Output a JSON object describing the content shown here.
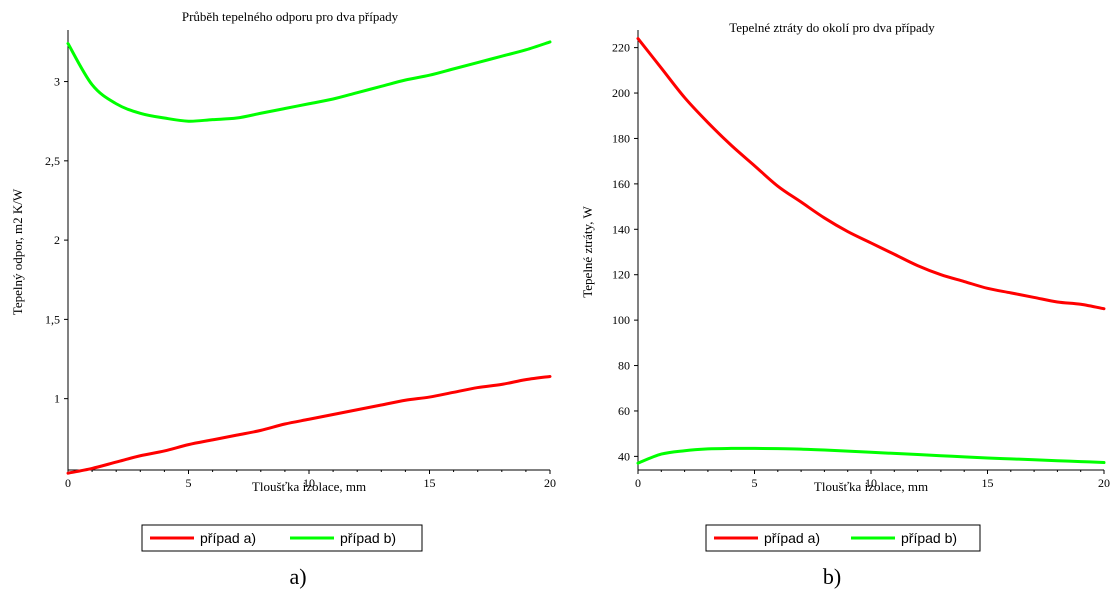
{
  "chart_data": [
    {
      "type": "line",
      "title": "Průběh tepelného odporu pro dva případy",
      "xlabel": "Tloušťka izolace, mm",
      "ylabel": "Tepelný odpor, m2 K/W",
      "xlim": [
        0,
        20
      ],
      "ylim": [
        0.55,
        3.3
      ],
      "x_ticks": [
        0,
        5,
        10,
        15,
        20
      ],
      "x_tick_labels": [
        "0",
        "5",
        "10",
        "15",
        "20"
      ],
      "y_ticks": [
        1,
        1.5,
        2,
        2.5,
        3
      ],
      "y_tick_labels": [
        "1",
        "1,5",
        "2",
        "2,5",
        "3"
      ],
      "grid": false,
      "legend_position": "bottom",
      "caption": "a)",
      "x": [
        0,
        1,
        2,
        3,
        4,
        5,
        6,
        7,
        8,
        9,
        10,
        11,
        12,
        13,
        14,
        15,
        16,
        17,
        18,
        19,
        20
      ],
      "series": [
        {
          "name": "případ a)",
          "color": "#ff0000",
          "values": [
            0.53,
            0.56,
            0.6,
            0.64,
            0.67,
            0.71,
            0.74,
            0.77,
            0.8,
            0.84,
            0.87,
            0.9,
            0.93,
            0.96,
            0.99,
            1.01,
            1.04,
            1.07,
            1.09,
            1.12,
            1.14
          ]
        },
        {
          "name": "případ b)",
          "color": "#00ff00",
          "values": [
            3.24,
            2.98,
            2.86,
            2.8,
            2.77,
            2.75,
            2.76,
            2.77,
            2.8,
            2.83,
            2.86,
            2.89,
            2.93,
            2.97,
            3.01,
            3.04,
            3.08,
            3.12,
            3.16,
            3.2,
            3.25
          ]
        }
      ]
    },
    {
      "type": "line",
      "title": "Tepelné ztráty do okolí pro dva případy",
      "xlabel": "Tloušťka izolace, mm",
      "ylabel": "Tepelné ztráty, W",
      "xlim": [
        0,
        20
      ],
      "ylim": [
        34,
        226
      ],
      "x_ticks": [
        0,
        5,
        10,
        15,
        20
      ],
      "x_tick_labels": [
        "0",
        "5",
        "10",
        "15",
        "20"
      ],
      "y_ticks": [
        40,
        60,
        80,
        100,
        120,
        140,
        160,
        180,
        200,
        220
      ],
      "y_tick_labels": [
        "40",
        "60",
        "80",
        "100",
        "120",
        "140",
        "160",
        "180",
        "200",
        "220"
      ],
      "grid": false,
      "legend_position": "bottom",
      "caption": "b)",
      "x": [
        0,
        1,
        2,
        3,
        4,
        5,
        6,
        7,
        8,
        9,
        10,
        11,
        12,
        13,
        14,
        15,
        16,
        17,
        18,
        19,
        20
      ],
      "series": [
        {
          "name": "případ a)",
          "color": "#ff0000",
          "values": [
            224,
            211,
            198,
            187,
            177,
            168,
            159,
            152,
            145,
            139,
            134,
            129,
            124,
            120,
            117,
            114,
            112,
            110,
            108,
            107,
            105
          ]
        },
        {
          "name": "případ b)",
          "color": "#00ff00",
          "values": [
            37,
            41,
            42.5,
            43.3,
            43.5,
            43.5,
            43.4,
            43.2,
            42.8,
            42.3,
            41.8,
            41.3,
            40.8,
            40.3,
            39.8,
            39.3,
            38.9,
            38.5,
            38.1,
            37.7,
            37.3
          ]
        }
      ]
    }
  ]
}
